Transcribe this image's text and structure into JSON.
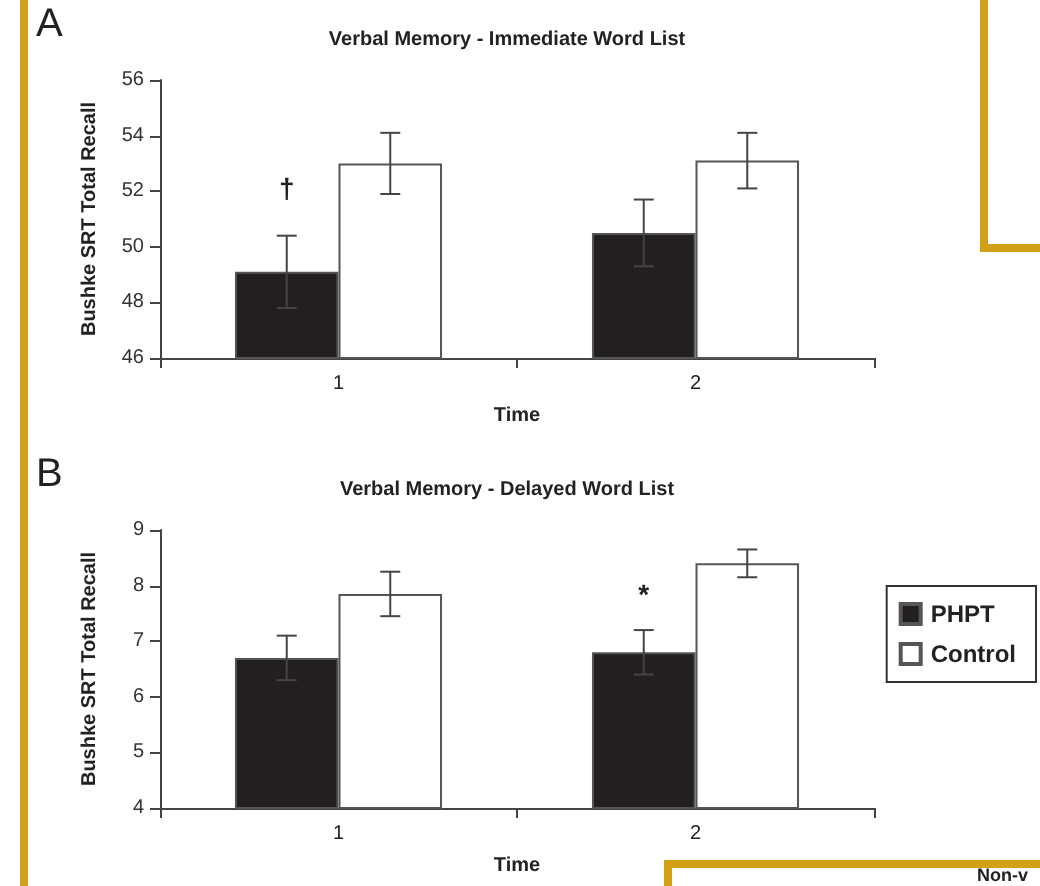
{
  "chart_data": [
    {
      "type": "bar",
      "title": "Verbal Memory - Immediate Word List",
      "xlabel": "Time",
      "ylabel": "Bushke SRT Total Recall",
      "categories": [
        "1",
        "2"
      ],
      "series": [
        {
          "color": "#231f20",
          "values": [
            49.1,
            50.5
          ],
          "errors": [
            1.3,
            1.2
          ]
        },
        {
          "color": "#ffffff",
          "values": [
            53.0,
            53.1
          ],
          "errors": [
            1.1,
            1.0
          ]
        }
      ],
      "ylim": [
        46,
        56
      ],
      "yticks": [
        46,
        48,
        50,
        52,
        54,
        56
      ],
      "grid": false,
      "legend": false,
      "annotations": [
        "A",
        {
          "text": "†",
          "x": "1",
          "y": 51.6
        }
      ]
    },
    {
      "type": "bar",
      "title": "Verbal Memory - Delayed Word List",
      "xlabel": "Time",
      "ylabel": "Bushke SRT Total Recall",
      "categories": [
        "1",
        "2"
      ],
      "series": [
        {
          "name": "PHPT",
          "color": "#231f20",
          "values": [
            6.7,
            6.8
          ],
          "errors": [
            0.4,
            0.4
          ]
        },
        {
          "name": "Control",
          "color": "#ffffff",
          "values": [
            7.85,
            8.4
          ],
          "errors": [
            0.4,
            0.25
          ]
        }
      ],
      "ylim": [
        4,
        9
      ],
      "yticks": [
        4,
        5,
        6,
        7,
        8,
        9
      ],
      "grid": false,
      "legend": "right",
      "annotations": [
        "B",
        {
          "text": "*",
          "x": "2",
          "y": 7.6
        },
        "Non-v"
      ]
    }
  ]
}
